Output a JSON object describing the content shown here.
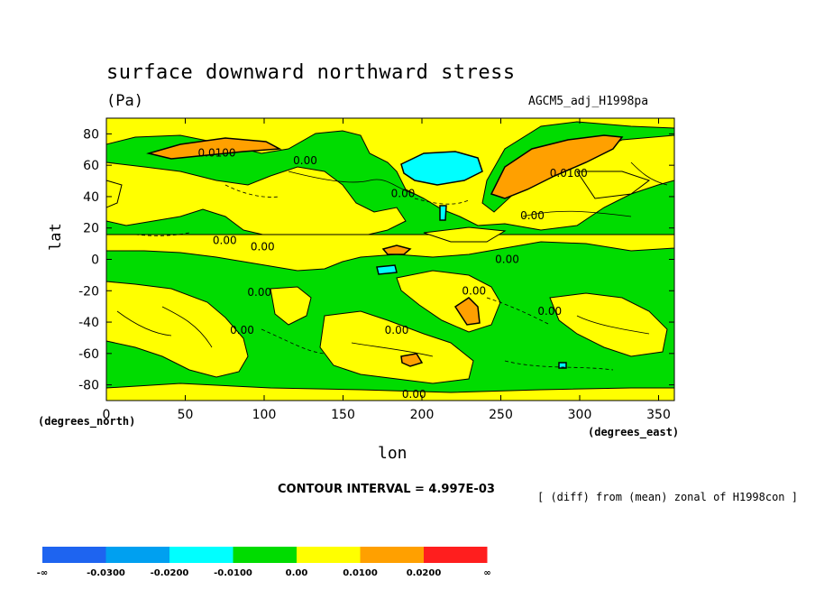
{
  "chart_data": {
    "type": "heatmap",
    "title": "surface downward northward stress",
    "units": "(Pa)",
    "source_label": "AGCM5_adj_H1998pa",
    "xlabel": "lon",
    "ylabel": "lat",
    "x_unit_label": "(degrees_east)",
    "y_unit_label": "(degrees_north)",
    "xlim": [
      0,
      360
    ],
    "ylim": [
      -90,
      90
    ],
    "x_ticks": [
      0,
      50,
      100,
      150,
      200,
      250,
      300,
      350
    ],
    "y_ticks": [
      -80,
      -60,
      -40,
      -20,
      0,
      20,
      40,
      60,
      80
    ],
    "contour_interval_text": "CONTOUR INTERVAL = 4.997E-03",
    "note": "[ (diff) from (mean) zonal of H1998con ]",
    "colorbar": {
      "colors": [
        "#1e64f0",
        "#00a0f0",
        "#00ffff",
        "#00dc00",
        "#ffff00",
        "#ffa000",
        "#ff1e1e"
      ],
      "labels": [
        "-∞",
        "-0.0300",
        "-0.0200",
        "-0.0100",
        "0.00",
        "0.0100",
        "0.0200",
        "∞"
      ]
    },
    "contour_labels": [
      {
        "text": "0.0100",
        "lon": 70,
        "lat": 68
      },
      {
        "text": "0.00",
        "lon": 126,
        "lat": 63
      },
      {
        "text": "0.00",
        "lon": 188,
        "lat": 42
      },
      {
        "text": "0.0100",
        "lon": 293,
        "lat": 55
      },
      {
        "text": "0.00",
        "lon": 270,
        "lat": 28
      },
      {
        "text": "0.00",
        "lon": 75,
        "lat": 12
      },
      {
        "text": "0.00",
        "lon": 99,
        "lat": 8
      },
      {
        "text": "0.00",
        "lon": 97,
        "lat": -21
      },
      {
        "text": "0.00",
        "lon": 86,
        "lat": -45
      },
      {
        "text": "0.00",
        "lon": 254,
        "lat": 0
      },
      {
        "text": "0.00",
        "lon": 233,
        "lat": -20
      },
      {
        "text": "0.00",
        "lon": 281,
        "lat": -33
      },
      {
        "text": "0.00",
        "lon": 184,
        "lat": -45
      },
      {
        "text": "0.00",
        "lon": 195,
        "lat": -86
      }
    ]
  }
}
